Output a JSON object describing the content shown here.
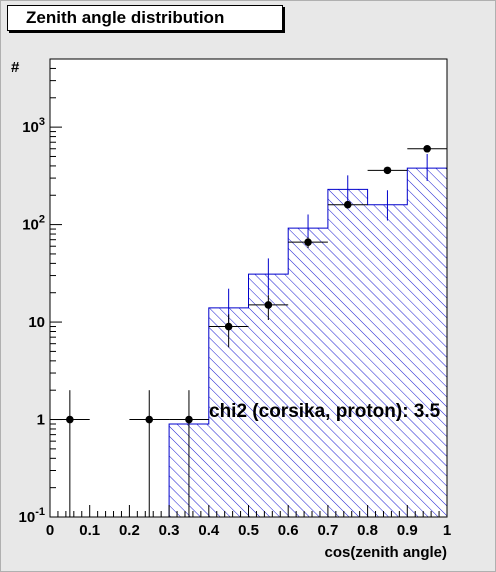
{
  "chart_data": {
    "type": "bar",
    "title": "Zenith angle distribution",
    "xlabel": "cos(zenith angle)",
    "ylabel": "#",
    "xlim": [
      0,
      1
    ],
    "ylim": [
      0.1,
      5000
    ],
    "yscale": "log",
    "x_ticks": [
      "0",
      "0.1",
      "0.2",
      "0.3",
      "0.4",
      "0.5",
      "0.6",
      "0.7",
      "0.8",
      "0.9",
      "1"
    ],
    "y_ticks": [
      {
        "value": 0.1,
        "base": "10",
        "exp": "-1"
      },
      {
        "value": 1,
        "base": "1",
        "exp": ""
      },
      {
        "value": 10,
        "base": "10",
        "exp": ""
      },
      {
        "value": 100,
        "base": "10",
        "exp": "2"
      },
      {
        "value": 1000,
        "base": "10",
        "exp": "3"
      }
    ],
    "bin_edges": [
      0,
      0.1,
      0.2,
      0.3,
      0.4,
      0.5,
      0.6,
      0.7,
      0.8,
      0.9,
      1.0
    ],
    "histogram": {
      "values": [
        0,
        0,
        0,
        0.9,
        14,
        31,
        92,
        230,
        160,
        380
      ],
      "err_low": [
        0,
        0,
        0,
        0,
        6,
        12,
        30,
        70,
        50,
        100
      ],
      "err_high": [
        0,
        0,
        0,
        0,
        8,
        14,
        35,
        90,
        65,
        150
      ],
      "fill": "hatched",
      "color": "#0000cc"
    },
    "points": {
      "x": [
        0.05,
        0.25,
        0.35,
        0.45,
        0.55,
        0.65,
        0.75,
        0.85,
        0.95
      ],
      "y": [
        1,
        1,
        1,
        9,
        15,
        66,
        160,
        360,
        600
      ],
      "err_low": [
        0.9,
        0.9,
        0.9,
        3.5,
        4.5,
        8.5,
        12.5,
        19,
        24
      ],
      "err_high": [
        1.0,
        1.0,
        1.0,
        3.0,
        3.9,
        8.1,
        12.6,
        19,
        24.5
      ],
      "color": "#000000"
    },
    "annotation": "chi2 (corsika, proton): 3.5",
    "grid": false,
    "legend": "none"
  }
}
